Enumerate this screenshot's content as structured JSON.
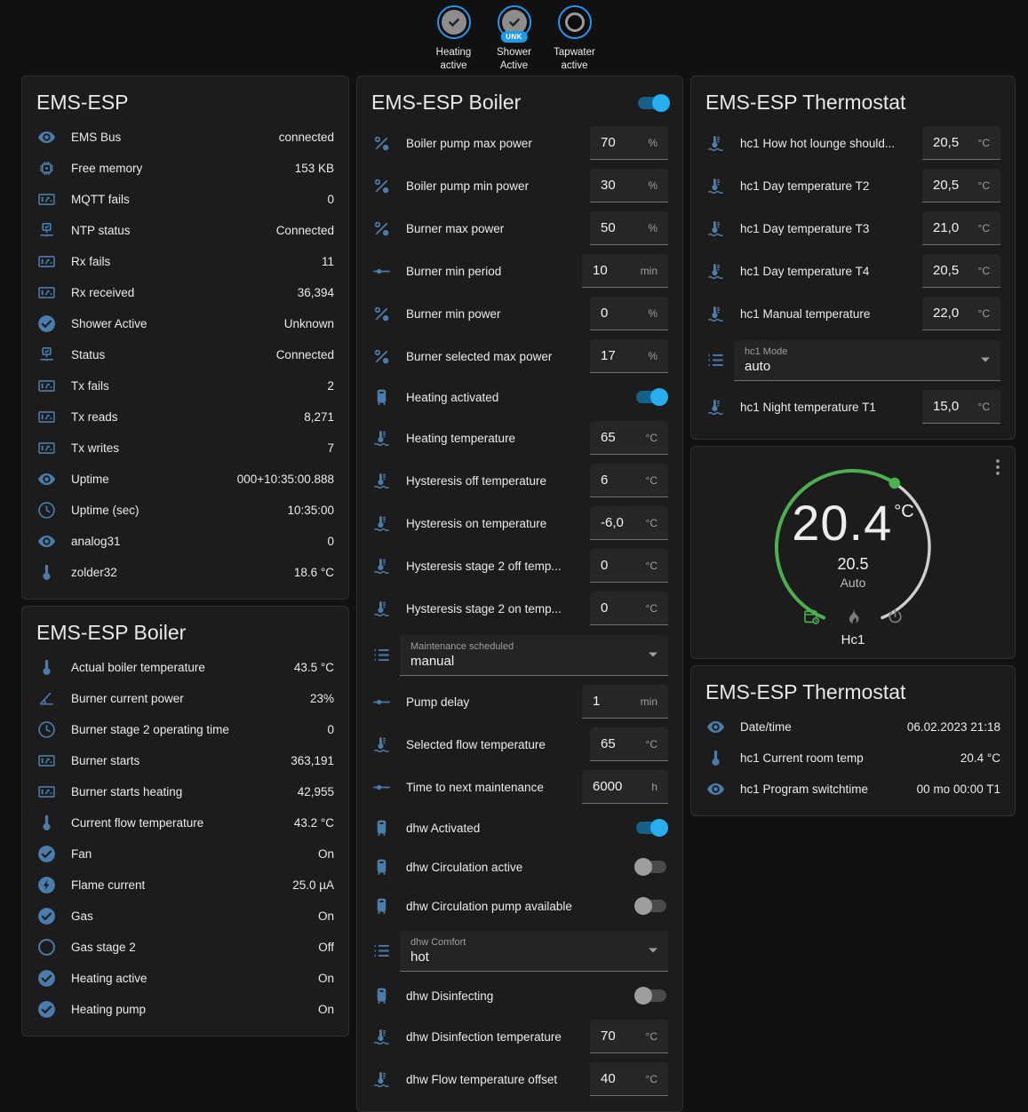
{
  "colors": {
    "page_bg": "#111111",
    "card_bg": "#1c1c1c",
    "card_border": "#2f2f2f",
    "text": "#e6e6e6",
    "secondary_text": "#9e9e9e",
    "icon_blue": "#4a7dab",
    "badge_border": "#2196f3",
    "switch_on_thumb": "#27aeef",
    "switch_on_track": "#17608a",
    "switch_off_thumb": "#9e9e9e",
    "switch_off_track": "#4a4a4a",
    "green": "#4caf50",
    "arc_gray": "#cfcfcf"
  },
  "badges": [
    {
      "id": "heating-active",
      "style": "check",
      "tag": "",
      "line1": "Heating",
      "line2": "active"
    },
    {
      "id": "shower-active",
      "style": "check",
      "tag": "UNK",
      "line1": "Shower",
      "line2": "Active"
    },
    {
      "id": "tapwater-active",
      "style": "outline",
      "tag": "",
      "line1": "Tapwater",
      "line2": "active"
    }
  ],
  "columns": [
    {
      "cards": [
        {
          "type": "entities",
          "title": "EMS-ESP",
          "rows": [
            {
              "icon": "eye",
              "label": "EMS Bus",
              "value": "connected"
            },
            {
              "icon": "memory",
              "label": "Free memory",
              "value": "153 KB"
            },
            {
              "icon": "counter",
              "label": "MQTT fails",
              "value": "0"
            },
            {
              "icon": "network",
              "label": "NTP status",
              "value": "Connected"
            },
            {
              "icon": "counter",
              "label": "Rx fails",
              "value": "11"
            },
            {
              "icon": "counter",
              "label": "Rx received",
              "value": "36,394"
            },
            {
              "icon": "check-circle",
              "label": "Shower Active",
              "value": "Unknown"
            },
            {
              "icon": "network",
              "label": "Status",
              "value": "Connected"
            },
            {
              "icon": "counter",
              "label": "Tx fails",
              "value": "2"
            },
            {
              "icon": "counter",
              "label": "Tx reads",
              "value": "8,271"
            },
            {
              "icon": "counter",
              "label": "Tx writes",
              "value": "7"
            },
            {
              "icon": "eye",
              "label": "Uptime",
              "value": "000+10:35:00.888"
            },
            {
              "icon": "clock",
              "label": "Uptime (sec)",
              "value": "10:35:00"
            },
            {
              "icon": "eye",
              "label": "analog31",
              "value": "0"
            },
            {
              "icon": "thermometer",
              "label": "zolder32",
              "value": "18.6 °C"
            }
          ]
        },
        {
          "type": "entities",
          "title": "EMS-ESP Boiler",
          "rows": [
            {
              "icon": "thermometer",
              "label": "Actual boiler temperature",
              "value": "43.5 °C"
            },
            {
              "icon": "angle",
              "label": "Burner current power",
              "value": "23%"
            },
            {
              "icon": "clock",
              "label": "Burner stage 2 operating time",
              "value": "0"
            },
            {
              "icon": "counter",
              "label": "Burner starts",
              "value": "363,191"
            },
            {
              "icon": "counter",
              "label": "Burner starts heating",
              "value": "42,955"
            },
            {
              "icon": "thermometer",
              "label": "Current flow temperature",
              "value": "43.2 °C"
            },
            {
              "icon": "check-circle",
              "label": "Fan",
              "value": "On"
            },
            {
              "icon": "flash-circle",
              "label": "Flame current",
              "value": "25.0 µA"
            },
            {
              "icon": "check-circle",
              "label": "Gas",
              "value": "On"
            },
            {
              "icon": "circle-outline",
              "label": "Gas stage 2",
              "value": "Off"
            },
            {
              "icon": "check-circle",
              "label": "Heating active",
              "value": "On"
            },
            {
              "icon": "check-circle",
              "label": "Heating pump",
              "value": "On"
            }
          ]
        }
      ]
    },
    {
      "cards": [
        {
          "type": "controls",
          "title": "EMS-ESP Boiler",
          "header_toggle": true,
          "header_toggle_on": true,
          "rows": [
            {
              "kind": "number",
              "icon": "percent",
              "label": "Boiler pump max power",
              "value": "70",
              "unit": "%"
            },
            {
              "kind": "number",
              "icon": "percent",
              "label": "Boiler pump min power",
              "value": "30",
              "unit": "%"
            },
            {
              "kind": "number",
              "icon": "percent",
              "label": "Burner max power",
              "value": "50",
              "unit": "%"
            },
            {
              "kind": "number",
              "icon": "ray",
              "label": "Burner min period",
              "value": "10",
              "unit": "min"
            },
            {
              "kind": "number",
              "icon": "percent",
              "label": "Burner min power",
              "value": "0",
              "unit": "%"
            },
            {
              "kind": "number",
              "icon": "percent",
              "label": "Burner selected max power",
              "value": "17",
              "unit": "%"
            },
            {
              "kind": "toggle",
              "icon": "boiler",
              "label": "Heating activated",
              "on": true
            },
            {
              "kind": "number",
              "icon": "coolant",
              "label": "Heating temperature",
              "value": "65",
              "unit": "°C"
            },
            {
              "kind": "number",
              "icon": "coolant",
              "label": "Hysteresis off temperature",
              "value": "6",
              "unit": "°C"
            },
            {
              "kind": "number",
              "icon": "coolant",
              "label": "Hysteresis on temperature",
              "value": "-6,0",
              "unit": "°C"
            },
            {
              "kind": "number",
              "icon": "coolant",
              "label": "Hysteresis stage 2 off temp...",
              "value": "0",
              "unit": "°C"
            },
            {
              "kind": "number",
              "icon": "coolant",
              "label": "Hysteresis stage 2 on temp...",
              "value": "0",
              "unit": "°C"
            },
            {
              "kind": "select",
              "icon": "list",
              "label": "Maintenance scheduled",
              "value": "manual"
            },
            {
              "kind": "number",
              "icon": "ray",
              "label": "Pump delay",
              "value": "1",
              "unit": "min"
            },
            {
              "kind": "number",
              "icon": "coolant",
              "label": "Selected flow temperature",
              "value": "65",
              "unit": "°C"
            },
            {
              "kind": "number",
              "icon": "ray",
              "label": "Time to next maintenance",
              "value": "6000",
              "unit": "h"
            },
            {
              "kind": "toggle",
              "icon": "boiler",
              "label": "dhw Activated",
              "on": true
            },
            {
              "kind": "toggle",
              "icon": "boiler",
              "label": "dhw Circulation active",
              "on": false
            },
            {
              "kind": "toggle",
              "icon": "boiler",
              "label": "dhw Circulation pump available",
              "on": false
            },
            {
              "kind": "select",
              "icon": "list",
              "label": "dhw Comfort",
              "value": "hot"
            },
            {
              "kind": "toggle",
              "icon": "boiler",
              "label": "dhw Disinfecting",
              "on": false
            },
            {
              "kind": "number",
              "icon": "coolant",
              "label": "dhw Disinfection temperature",
              "value": "70",
              "unit": "°C"
            },
            {
              "kind": "number",
              "icon": "coolant",
              "label": "dhw Flow temperature offset",
              "value": "40",
              "unit": "°C"
            }
          ]
        }
      ]
    },
    {
      "cards": [
        {
          "type": "controls",
          "title": "EMS-ESP Thermostat",
          "header_toggle": false,
          "rows": [
            {
              "kind": "number",
              "icon": "coolant",
              "label": "hc1 How hot lounge should...",
              "value": "20,5",
              "unit": "°C"
            },
            {
              "kind": "number",
              "icon": "coolant",
              "label": "hc1 Day temperature T2",
              "value": "20,5",
              "unit": "°C"
            },
            {
              "kind": "number",
              "icon": "coolant",
              "label": "hc1 Day temperature T3",
              "value": "21,0",
              "unit": "°C"
            },
            {
              "kind": "number",
              "icon": "coolant",
              "label": "hc1 Day temperature T4",
              "value": "20,5",
              "unit": "°C"
            },
            {
              "kind": "number",
              "icon": "coolant",
              "label": "hc1 Manual temperature",
              "value": "22,0",
              "unit": "°C"
            },
            {
              "kind": "select",
              "icon": "list",
              "label": "hc1 Mode",
              "value": "auto"
            },
            {
              "kind": "number",
              "icon": "coolant",
              "label": "hc1 Night temperature T1",
              "value": "15,0",
              "unit": "°C"
            }
          ]
        },
        {
          "type": "dial",
          "temp": "20.4",
          "temp_unit": "°C",
          "target": "20.5",
          "mode_label": "Auto",
          "zone": "Hc1",
          "mode_buttons": [
            {
              "icon": "calendar-clock",
              "active": true
            },
            {
              "icon": "fire",
              "active": false
            },
            {
              "icon": "power",
              "active": false
            }
          ]
        },
        {
          "type": "entities",
          "title": "EMS-ESP Thermostat",
          "rows": [
            {
              "icon": "eye",
              "label": "Date/time",
              "value": "06.02.2023 21:18"
            },
            {
              "icon": "thermometer",
              "label": "hc1 Current room temp",
              "value": "20.4 °C"
            },
            {
              "icon": "eye",
              "label": "hc1 Program switchtime",
              "value": "00 mo 00:00 T1"
            }
          ]
        }
      ]
    }
  ]
}
